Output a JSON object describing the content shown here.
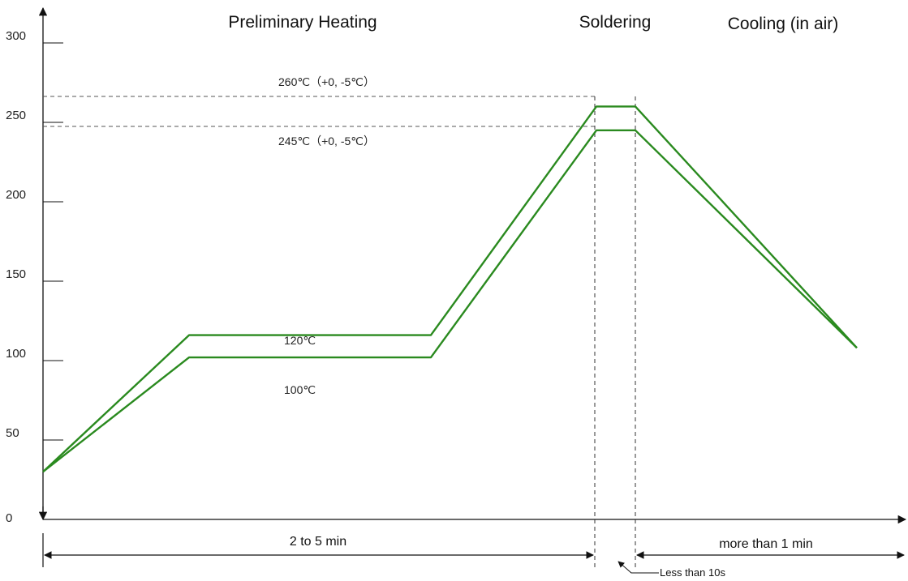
{
  "chart_data": {
    "type": "line",
    "title": "",
    "xlabel": "",
    "ylabel": "",
    "ylim": [
      0,
      300
    ],
    "y_ticks": [
      0,
      50,
      100,
      150,
      200,
      250,
      300
    ],
    "grid": false,
    "line_color": "#2a8a1f",
    "phases": [
      {
        "label": "Preliminary Heating"
      },
      {
        "label": "Soldering"
      },
      {
        "label": "Cooling (in air)"
      }
    ],
    "series": [
      {
        "points": [
          [
            0,
            30
          ],
          [
            1,
            116
          ],
          [
            2,
            116
          ],
          [
            3,
            260
          ],
          [
            4,
            260
          ],
          [
            5,
            108
          ]
        ]
      },
      {
        "points": [
          [
            0,
            30
          ],
          [
            1,
            102
          ],
          [
            2,
            102
          ],
          [
            3,
            245
          ],
          [
            4,
            245
          ],
          [
            5,
            108
          ]
        ]
      }
    ],
    "annotations": {
      "peak_upper": "260℃（+0, -5℃）",
      "peak_lower": "245℃（+0, -5℃）",
      "plateau_upper": "120℃",
      "plateau_lower": "100℃"
    },
    "durations": {
      "preheat": "2 to 5 min",
      "solder": "Less than 10s",
      "cooling": "more than 1 min"
    }
  }
}
